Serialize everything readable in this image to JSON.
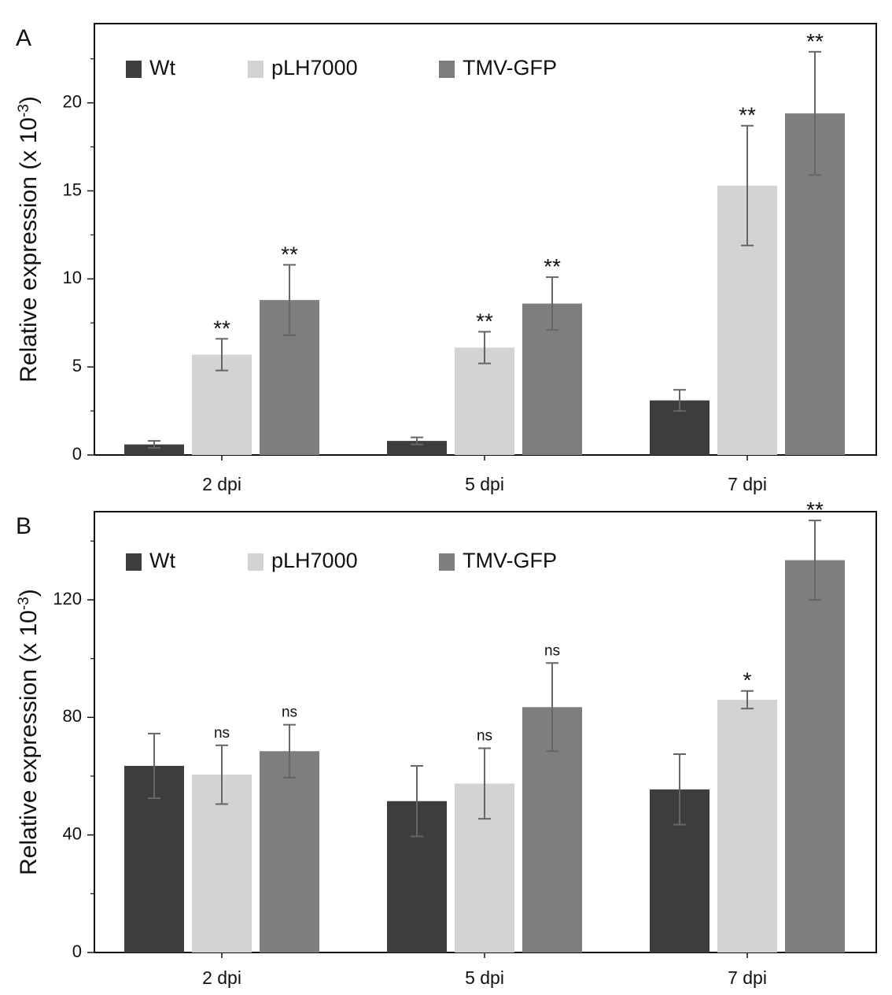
{
  "colors": {
    "series": [
      "#3d3d3d",
      "#d3d3d3",
      "#7e7e7e"
    ],
    "axis": "#111111",
    "errorbar": "#666666"
  },
  "chart_data": [
    {
      "type": "bar",
      "panel_label": "A",
      "title": "",
      "xlabel": "",
      "ylabel": "Relative expression (x 10",
      "ylabel_sup": "-3",
      "ylabel_close": ")",
      "ylim": [
        0,
        24.5
      ],
      "yticks": [
        0,
        5,
        10,
        15,
        20
      ],
      "minor_yticks": [
        2.5,
        7.5,
        12.5,
        17.5,
        22.5
      ],
      "categories": [
        "2 dpi",
        "5 dpi",
        "7 dpi"
      ],
      "legend_position": "top-left",
      "series": [
        {
          "name": "Wt",
          "values": [
            0.6,
            0.8,
            3.1
          ],
          "errors": [
            0.2,
            0.2,
            0.6
          ],
          "annotations": [
            "",
            "",
            ""
          ]
        },
        {
          "name": "pLH7000",
          "values": [
            5.7,
            6.1,
            15.3
          ],
          "errors": [
            0.9,
            0.9,
            3.4
          ],
          "annotations": [
            "**",
            "**",
            "**"
          ]
        },
        {
          "name": "TMV-GFP",
          "values": [
            8.8,
            8.6,
            19.4
          ],
          "errors": [
            2.0,
            1.5,
            3.5
          ],
          "annotations": [
            "**",
            "**",
            "**"
          ]
        }
      ]
    },
    {
      "type": "bar",
      "panel_label": "B",
      "title": "",
      "xlabel": "",
      "ylabel": "Relative expression (x 10",
      "ylabel_sup": "-3",
      "ylabel_close": ")",
      "ylim": [
        0,
        150
      ],
      "yticks": [
        0,
        40,
        80,
        120
      ],
      "minor_yticks": [
        20,
        60,
        100,
        140
      ],
      "categories": [
        "2 dpi",
        "5 dpi",
        "7 dpi"
      ],
      "legend_position": "top-left",
      "series": [
        {
          "name": "Wt",
          "values": [
            63.5,
            51.5,
            55.5
          ],
          "errors": [
            11,
            12,
            12
          ],
          "annotations": [
            "",
            "",
            ""
          ]
        },
        {
          "name": "pLH7000",
          "values": [
            60.5,
            57.5,
            86
          ],
          "errors": [
            10,
            12,
            3
          ],
          "annotations": [
            "ns",
            "ns",
            "*"
          ]
        },
        {
          "name": "TMV-GFP",
          "values": [
            68.5,
            83.5,
            133.5
          ],
          "errors": [
            9,
            15,
            13.5
          ],
          "annotations": [
            "ns",
            "ns",
            "**"
          ]
        }
      ]
    }
  ]
}
